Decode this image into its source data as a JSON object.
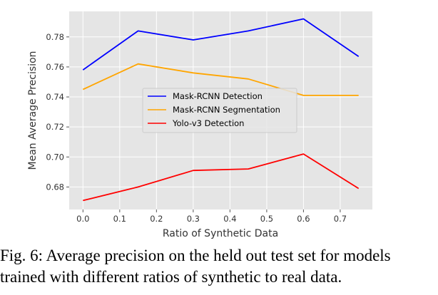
{
  "chart_data": {
    "type": "line",
    "xlabel": "Ratio of Synthetic Data",
    "ylabel": "Mean Average Precision",
    "xlim": [
      -0.0375,
      0.7875
    ],
    "ylim": [
      0.665,
      0.797
    ],
    "xticks": [
      0.0,
      0.1,
      0.2,
      0.3,
      0.4,
      0.5,
      0.6,
      0.7
    ],
    "yticks": [
      0.68,
      0.7,
      0.72,
      0.74,
      0.76,
      0.78
    ],
    "grid": true,
    "legend_position": "center",
    "x": [
      0.0,
      0.15,
      0.3,
      0.45,
      0.6,
      0.75
    ],
    "series": [
      {
        "name": "Mask-RCNN Detection",
        "color": "#0000ff",
        "values": [
          0.758,
          0.784,
          0.778,
          0.784,
          0.792,
          0.767
        ]
      },
      {
        "name": "Mask-RCNN Segmentation",
        "color": "#ffa500",
        "values": [
          0.745,
          0.762,
          0.756,
          0.752,
          0.741,
          0.741
        ]
      },
      {
        "name": "Yolo-v3 Detection",
        "color": "#ff0000",
        "values": [
          0.671,
          0.68,
          0.691,
          0.692,
          0.702,
          0.679
        ]
      }
    ]
  },
  "caption": {
    "line1": "Fig. 6: Average precision on the held out test set for models",
    "line2": "trained with different ratios of synthetic to real data."
  }
}
